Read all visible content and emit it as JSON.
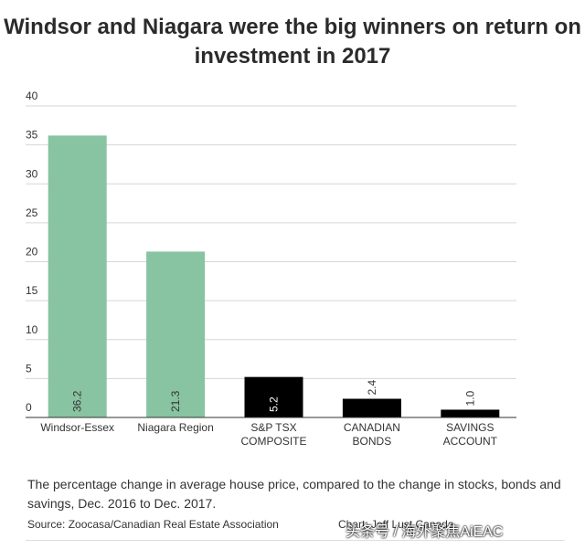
{
  "title": "Windsor and Niagara were the big winners on return on investment in 2017",
  "caption": "The percentage change in average house price, compared to the change in stocks, bonds and savings, Dec. 2016 to Dec. 2017.",
  "source": "Source: Zoocasa/Canadian Real Estate Association",
  "credit": "Chart: Jeff Lust Canada",
  "watermark": "头条号 / 海外聚焦AiEAC",
  "colors": {
    "housing": "#88c3a2",
    "investment": "#000000",
    "grid": "#d6d6d6"
  },
  "chart_data": {
    "type": "bar",
    "categories": [
      "Windsor-Essex",
      "Niagara Region",
      "S&P TSX\nCOMPOSITE",
      "CANADIAN\nBONDS",
      "SAVINGS\nACCOUNT"
    ],
    "values": [
      36.2,
      21.3,
      5.2,
      2.4,
      1.0
    ],
    "value_labels": [
      "36.2",
      "21.3",
      "5.2",
      "2.4",
      "1.0"
    ],
    "bar_colors": [
      "#88c3a2",
      "#88c3a2",
      "#000000",
      "#000000",
      "#000000"
    ],
    "ylim": [
      0,
      40
    ],
    "yticks": [
      0,
      5,
      10,
      15,
      20,
      25,
      30,
      35,
      40
    ],
    "grid": true,
    "title": "Windsor and Niagara were the big winners on return on investment in 2017",
    "xlabel": "",
    "ylabel": ""
  }
}
